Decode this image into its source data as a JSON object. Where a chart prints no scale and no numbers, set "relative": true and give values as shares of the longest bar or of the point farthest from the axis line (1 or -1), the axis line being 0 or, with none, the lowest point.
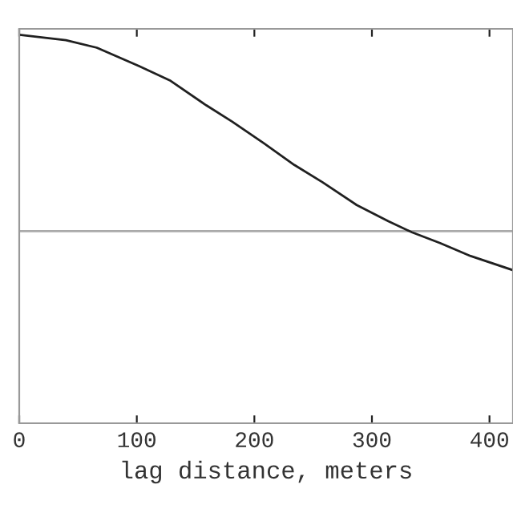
{
  "chart_data": {
    "type": "line",
    "xlabel": "lag distance, meters",
    "relative": true,
    "x": [
      0,
      39.7,
      66,
      102,
      128,
      159,
      181,
      208,
      234,
      258,
      287,
      314,
      334,
      358,
      384,
      420
    ],
    "series": [
      {
        "color": "#202020",
        "values": [
          1.0,
          0.972,
          0.934,
          0.84,
          0.768,
          0.641,
          0.558,
          0.448,
          0.337,
          0.249,
          0.133,
          0.05,
          -0.006,
          -0.061,
          -0.127,
          -0.199
        ]
      }
    ],
    "xlim": [
      0,
      420
    ],
    "xticks": [
      0,
      100,
      200,
      300,
      400
    ],
    "grid": false,
    "legend": false
  }
}
